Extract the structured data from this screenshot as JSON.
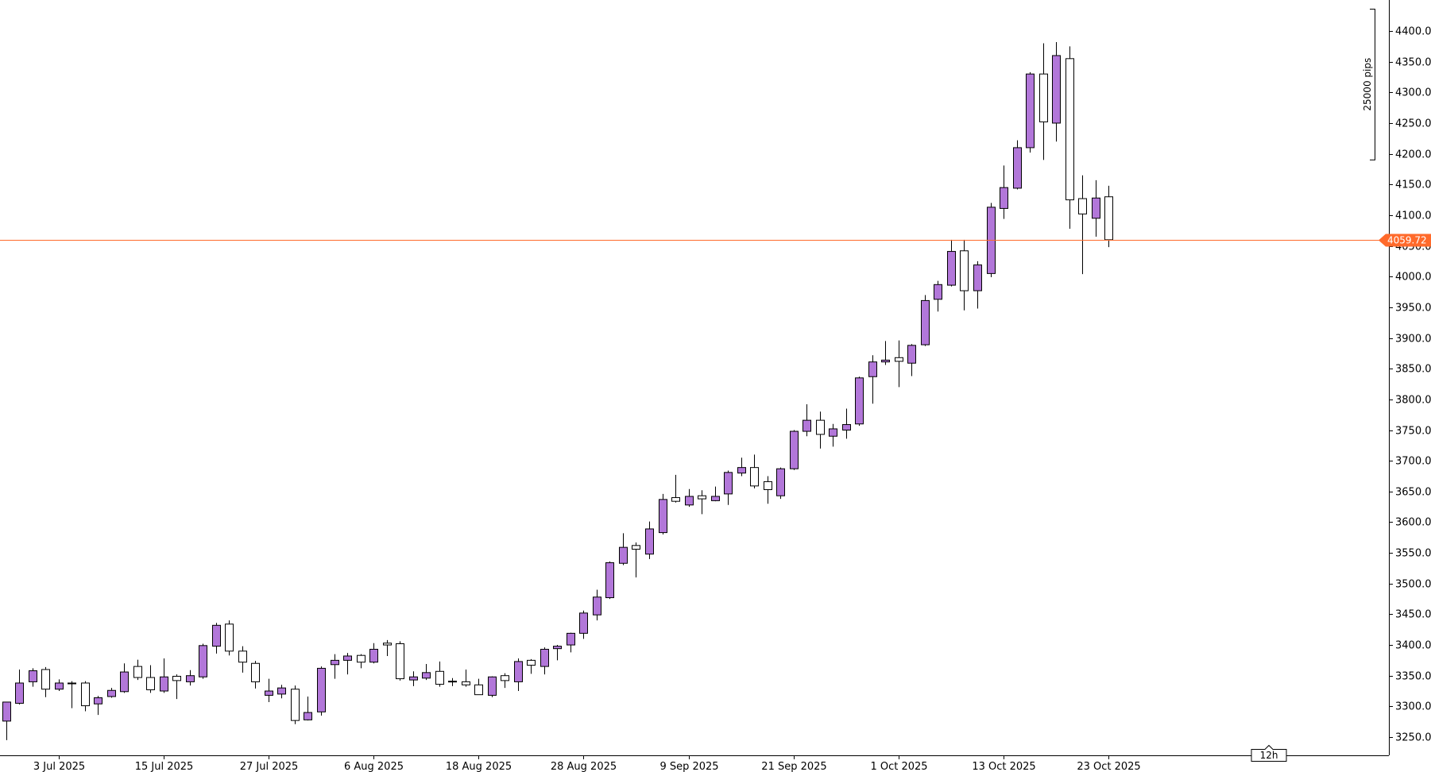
{
  "chart_data": {
    "type": "candlestick",
    "timeframe": "12h",
    "current_price": "4059.72",
    "range_label": "25000 pips",
    "ylim": [
      3230,
      4430
    ],
    "y_ticks": [
      "3250.00",
      "3300.00",
      "3350.00",
      "3400.00",
      "3450.00",
      "3500.00",
      "3550.00",
      "3600.00",
      "3650.00",
      "3700.00",
      "3750.00",
      "3800.00",
      "3850.00",
      "3900.00",
      "3950.00",
      "4000.00",
      "4050.00",
      "4100.00",
      "4150.00",
      "4200.00",
      "4250.00",
      "4300.00",
      "4350.00",
      "4400.00"
    ],
    "x_labels": [
      {
        "text": "3 Jul 2025",
        "bar": 4
      },
      {
        "text": "15 Jul 2025",
        "bar": 12
      },
      {
        "text": "27 Jul 2025",
        "bar": 20
      },
      {
        "text": "6 Aug 2025",
        "bar": 28
      },
      {
        "text": "18 Aug 2025",
        "bar": 36
      },
      {
        "text": "28 Aug 2025",
        "bar": 44
      },
      {
        "text": "9 Sep 2025",
        "bar": 52
      },
      {
        "text": "21 Sep 2025",
        "bar": 60
      },
      {
        "text": "1 Oct 2025",
        "bar": 68
      },
      {
        "text": "13 Oct 2025",
        "bar": 76
      },
      {
        "text": "23 Oct 2025",
        "bar": 84
      }
    ],
    "candles": [
      [
        3276,
        3307,
        3245,
        3305
      ],
      [
        3305,
        3338,
        3303,
        3360
      ],
      [
        3340,
        3358,
        3332,
        3362
      ],
      [
        3360,
        3328,
        3315,
        3364
      ],
      [
        3328,
        3338,
        3325,
        3344
      ],
      [
        3338,
        3338,
        3297,
        3341
      ],
      [
        3338,
        3301,
        3292,
        3341
      ],
      [
        3304,
        3314,
        3286,
        3317
      ],
      [
        3316,
        3326,
        3314,
        3330
      ],
      [
        3324,
        3356,
        3322,
        3370
      ],
      [
        3365,
        3347,
        3343,
        3376
      ],
      [
        3347,
        3327,
        3322,
        3367
      ],
      [
        3325,
        3348,
        3322,
        3378
      ],
      [
        3349,
        3342,
        3312,
        3352
      ],
      [
        3340,
        3350,
        3334,
        3359
      ],
      [
        3348,
        3399,
        3345,
        3402
      ],
      [
        3398,
        3432,
        3386,
        3436
      ],
      [
        3434,
        3390,
        3383,
        3440
      ],
      [
        3390,
        3372,
        3355,
        3398
      ],
      [
        3370,
        3340,
        3329,
        3374
      ],
      [
        3318,
        3325,
        3307,
        3345
      ],
      [
        3320,
        3330,
        3313,
        3335
      ],
      [
        3328,
        3277,
        3271,
        3334
      ],
      [
        3278,
        3290,
        3277,
        3316
      ],
      [
        3291,
        3362,
        3285,
        3365
      ],
      [
        3368,
        3375,
        3345,
        3385
      ],
      [
        3375,
        3382,
        3352,
        3387
      ],
      [
        3383,
        3372,
        3362,
        3385
      ],
      [
        3372,
        3393,
        3370,
        3403
      ],
      [
        3403,
        3400,
        3382,
        3408
      ],
      [
        3402,
        3345,
        3342,
        3406
      ],
      [
        3343,
        3348,
        3333,
        3357
      ],
      [
        3346,
        3355,
        3343,
        3369
      ],
      [
        3357,
        3336,
        3332,
        3373
      ],
      [
        3340,
        3341,
        3333,
        3346
      ],
      [
        3340,
        3335,
        3332,
        3360
      ],
      [
        3335,
        3319,
        3319,
        3345
      ],
      [
        3318,
        3348,
        3315,
        3349
      ],
      [
        3350,
        3342,
        3330,
        3354
      ],
      [
        3340,
        3373,
        3325,
        3378
      ],
      [
        3375,
        3367,
        3353,
        3377
      ],
      [
        3365,
        3393,
        3352,
        3396
      ],
      [
        3394,
        3398,
        3375,
        3400
      ],
      [
        3400,
        3419,
        3388,
        3420
      ],
      [
        3419,
        3452,
        3410,
        3456
      ],
      [
        3449,
        3478,
        3440,
        3490
      ],
      [
        3477,
        3534,
        3475,
        3536
      ],
      [
        3533,
        3559,
        3530,
        3582
      ],
      [
        3562,
        3556,
        3510,
        3567
      ],
      [
        3548,
        3589,
        3540,
        3601
      ],
      [
        3583,
        3637,
        3580,
        3646
      ],
      [
        3640,
        3634,
        3632,
        3677
      ],
      [
        3628,
        3642,
        3625,
        3654
      ],
      [
        3643,
        3638,
        3613,
        3652
      ],
      [
        3635,
        3642,
        3634,
        3658
      ],
      [
        3646,
        3681,
        3628,
        3684
      ],
      [
        3680,
        3689,
        3675,
        3705
      ],
      [
        3689,
        3659,
        3655,
        3710
      ],
      [
        3666,
        3653,
        3630,
        3675
      ],
      [
        3643,
        3687,
        3638,
        3689
      ],
      [
        3687,
        3748,
        3685,
        3750
      ],
      [
        3748,
        3766,
        3740,
        3792
      ],
      [
        3766,
        3743,
        3720,
        3780
      ],
      [
        3740,
        3752,
        3723,
        3760
      ],
      [
        3750,
        3759,
        3736,
        3785
      ],
      [
        3760,
        3835,
        3757,
        3837
      ],
      [
        3837,
        3861,
        3793,
        3872
      ],
      [
        3861,
        3864,
        3856,
        3895
      ],
      [
        3868,
        3862,
        3820,
        3896
      ],
      [
        3859,
        3888,
        3838,
        3890
      ],
      [
        3889,
        3961,
        3887,
        3970
      ],
      [
        3963,
        3987,
        3943,
        3993
      ],
      [
        3986,
        4041,
        3984,
        4060
      ],
      [
        4042,
        3977,
        3945,
        4060
      ],
      [
        3977,
        4019,
        3948,
        4025
      ],
      [
        4005,
        4113,
        3999,
        4120
      ],
      [
        4111,
        4145,
        4094,
        4181
      ],
      [
        4144,
        4210,
        4142,
        4222
      ],
      [
        4210,
        4330,
        4202,
        4333
      ],
      [
        4330,
        4252,
        4190,
        4380
      ],
      [
        4250,
        4360,
        4220,
        4382
      ],
      [
        4355,
        4125,
        4078,
        4375
      ],
      [
        4127,
        4102,
        4004,
        4165
      ],
      [
        4095,
        4128,
        4065,
        4157
      ],
      [
        4130,
        4060,
        4048,
        4148
      ]
    ]
  },
  "colors": {
    "bull": "#b277d9",
    "bear": "#ffffff",
    "outline": "#000000",
    "price_line": "#ff6a2b"
  }
}
